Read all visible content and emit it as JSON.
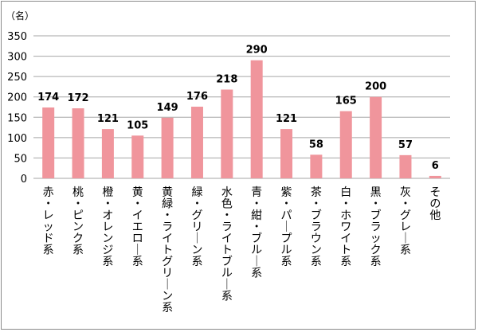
{
  "chart_data": {
    "type": "bar",
    "unit_label": "（名）",
    "categories": [
      "赤・レッド系",
      "桃・ピンク系",
      "橙・オレンジ系",
      "黄・イエロー系",
      "黄緑・ライトグリーン系",
      "緑・グリーン系",
      "水色・ライトブルー系",
      "青・紺・ブルー系",
      "紫・パープル系",
      "茶・ブラウン系",
      "白・ホワイト系",
      "黒・ブラック系",
      "灰・グレー系",
      "その他"
    ],
    "values": [
      174,
      172,
      121,
      105,
      149,
      176,
      218,
      290,
      121,
      58,
      165,
      200,
      57,
      6
    ],
    "data_labels": [
      "174",
      "172",
      "121",
      "105",
      "149",
      "176",
      "218",
      "290",
      "121",
      "58",
      "165",
      "200",
      "57",
      "6"
    ],
    "ylim": [
      0,
      350
    ],
    "yticks": [
      "0",
      "50",
      "100",
      "150",
      "200",
      "250",
      "300",
      "350"
    ],
    "grid": true,
    "bar_color": "#f0959c",
    "grid_color": "#a6a6a6"
  }
}
